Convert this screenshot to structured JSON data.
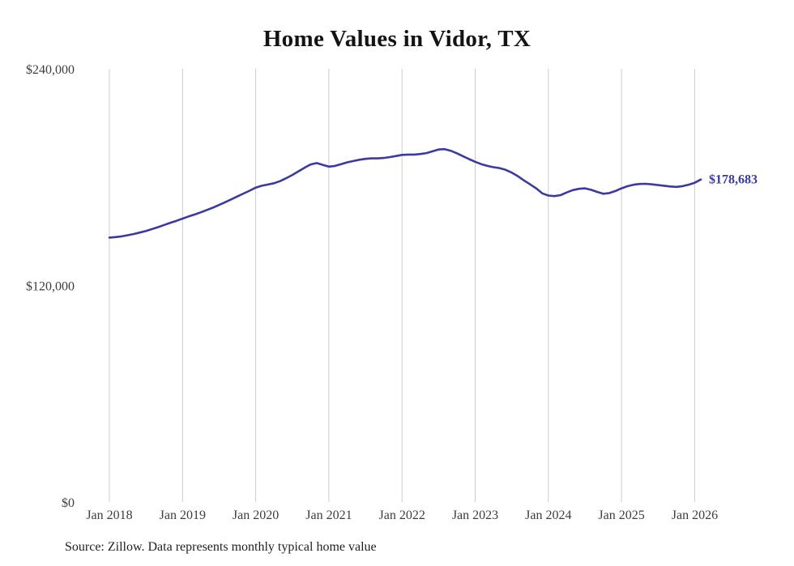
{
  "page": {
    "title": "Home Values in Vidor, TX",
    "source_note": "Source: Zillow. Data represents monthly typical home value"
  },
  "chart_data": {
    "type": "line",
    "title": "Home Values in Vidor, TX",
    "xlabel": "",
    "ylabel": "",
    "x_start": "Jan 2018",
    "x_interval": "monthly",
    "x_tick_labels": [
      "Jan 2018",
      "Jan 2019",
      "Jan 2020",
      "Jan 2021",
      "Jan 2022",
      "Jan 2023",
      "Jan 2024",
      "Jan 2025",
      "Jan 2026"
    ],
    "x_tick_month_indices": [
      0,
      12,
      24,
      36,
      48,
      60,
      72,
      84,
      96
    ],
    "ylim": [
      0,
      240000
    ],
    "y_ticks": [
      {
        "value": 0,
        "label": "$0"
      },
      {
        "value": 120000,
        "label": "$120,000"
      },
      {
        "value": 240000,
        "label": "$240,000"
      }
    ],
    "grid": "vertical-only",
    "legend": "none",
    "end_label": "$178,683",
    "latest_value": 178683,
    "line_color": "#3b3aa2",
    "grid_color": "#cccccc",
    "label_color": "#3d3d3d",
    "source": "Source: Zillow. Data represents monthly typical home value",
    "series": [
      {
        "name": "Typical home value",
        "values": [
          146500,
          146800,
          147200,
          147800,
          148500,
          149300,
          150200,
          151200,
          152300,
          153500,
          154700,
          155800,
          157000,
          158200,
          159300,
          160500,
          161800,
          163100,
          164600,
          166100,
          167700,
          169300,
          170900,
          172500,
          174200,
          175200,
          175900,
          176600,
          177800,
          179400,
          181200,
          183200,
          185200,
          187000,
          187800,
          186800,
          185800,
          186200,
          187200,
          188200,
          188900,
          189600,
          190100,
          190400,
          190400,
          190600,
          191100,
          191700,
          192300,
          192500,
          192500,
          192800,
          193300,
          194300,
          195300,
          195500,
          194600,
          193200,
          191600,
          190000,
          188500,
          187200,
          186200,
          185500,
          185000,
          184000,
          182500,
          180500,
          178200,
          176000,
          173800,
          171000,
          169800,
          169500,
          170000,
          171500,
          172800,
          173500,
          173800,
          173000,
          171800,
          170800,
          171200,
          172300,
          173800,
          175000,
          175800,
          176200,
          176300,
          176000,
          175600,
          175200,
          174800,
          174600,
          175000,
          175800,
          176900,
          178683
        ]
      }
    ]
  }
}
